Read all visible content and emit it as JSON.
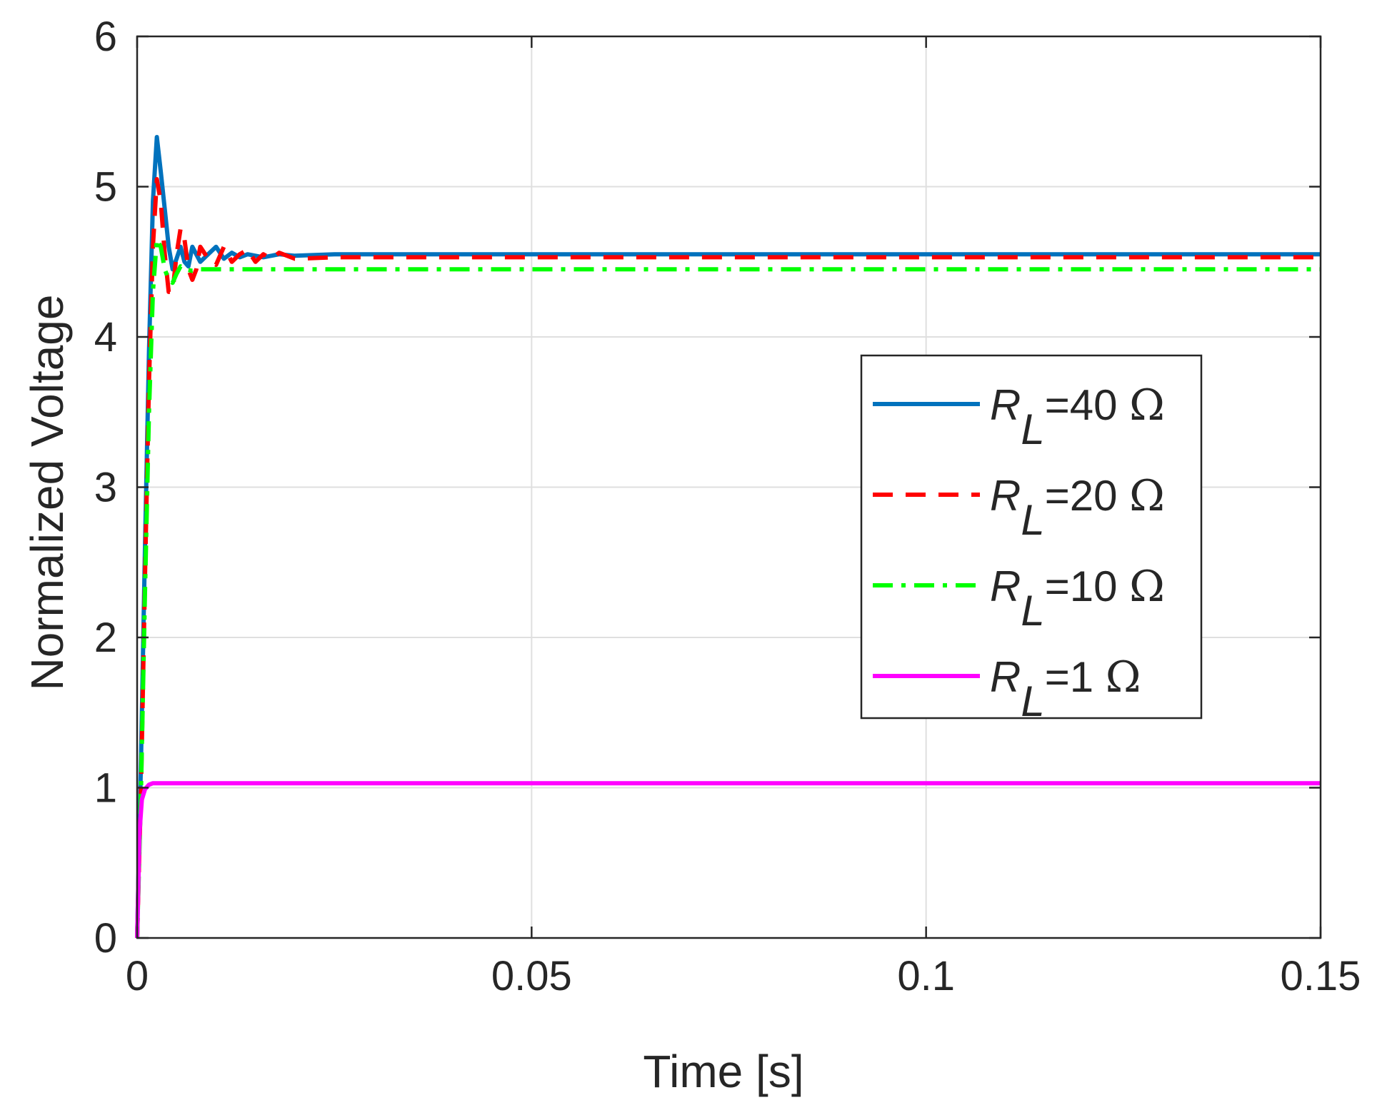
{
  "chart_data": {
    "type": "line",
    "xlabel": "Time [s]",
    "ylabel": "Normalized Voltage",
    "xlim": [
      0,
      0.15
    ],
    "ylim": [
      0,
      6
    ],
    "xticks": [
      0,
      0.05,
      0.1,
      0.15
    ],
    "xtick_labels": [
      "0",
      "0.05",
      "0.1",
      "0.15"
    ],
    "yticks": [
      0,
      1,
      2,
      3,
      4,
      5,
      6
    ],
    "ytick_labels": [
      "0",
      "1",
      "2",
      "3",
      "4",
      "5",
      "6"
    ],
    "grid": true,
    "legend_position": "center-right",
    "series": [
      {
        "name": "R_L=40 Ω",
        "legend": {
          "base": "R",
          "sub": "L",
          "rest": "=40 ",
          "symbol": "Ω"
        },
        "color": "#0072BD",
        "style": "solid",
        "x": [
          0,
          0.0005,
          0.001,
          0.0015,
          0.002,
          0.0025,
          0.003,
          0.0035,
          0.004,
          0.0045,
          0.005,
          0.0055,
          0.006,
          0.0065,
          0.007,
          0.008,
          0.009,
          0.01,
          0.011,
          0.012,
          0.013,
          0.014,
          0.016,
          0.018,
          0.02,
          0.025,
          0.05,
          0.1,
          0.15
        ],
        "y": [
          0,
          1.2,
          2.6,
          3.9,
          4.9,
          5.33,
          5.1,
          4.85,
          4.6,
          4.45,
          4.52,
          4.6,
          4.5,
          4.47,
          4.6,
          4.5,
          4.55,
          4.6,
          4.52,
          4.56,
          4.53,
          4.55,
          4.53,
          4.55,
          4.54,
          4.55,
          4.55,
          4.55,
          4.55
        ]
      },
      {
        "name": "R_L=20 Ω",
        "legend": {
          "base": "R",
          "sub": "L",
          "rest": "=20 ",
          "symbol": "Ω"
        },
        "color": "#FF0000",
        "style": "dashed",
        "x": [
          0,
          0.0005,
          0.001,
          0.0015,
          0.002,
          0.0025,
          0.003,
          0.0035,
          0.004,
          0.0045,
          0.005,
          0.0055,
          0.006,
          0.0065,
          0.007,
          0.0075,
          0.008,
          0.009,
          0.01,
          0.011,
          0.012,
          0.013,
          0.014,
          0.015,
          0.016,
          0.017,
          0.018,
          0.02,
          0.025,
          0.05,
          0.1,
          0.15
        ],
        "y": [
          0,
          1.0,
          2.4,
          3.7,
          4.6,
          5.05,
          4.9,
          4.55,
          4.3,
          4.3,
          4.55,
          4.72,
          4.65,
          4.45,
          4.38,
          4.45,
          4.6,
          4.52,
          4.48,
          4.6,
          4.5,
          4.55,
          4.58,
          4.5,
          4.55,
          4.52,
          4.56,
          4.52,
          4.53,
          4.53,
          4.53,
          4.53
        ]
      },
      {
        "name": "R_L=10 Ω",
        "legend": {
          "base": "R",
          "sub": "L",
          "rest": "=10 ",
          "symbol": "Ω"
        },
        "color": "#00FF00",
        "style": "dashdot",
        "x": [
          0,
          0.0005,
          0.001,
          0.0015,
          0.002,
          0.0025,
          0.003,
          0.0035,
          0.004,
          0.0045,
          0.005,
          0.0055,
          0.006,
          0.007,
          0.008,
          0.01,
          0.015,
          0.05,
          0.1,
          0.15
        ],
        "y": [
          0,
          1.0,
          2.3,
          3.5,
          4.3,
          4.65,
          4.6,
          4.45,
          4.38,
          4.36,
          4.42,
          4.47,
          4.45,
          4.44,
          4.45,
          4.45,
          4.45,
          4.45,
          4.45,
          4.45
        ]
      },
      {
        "name": "R_L=1 Ω",
        "legend": {
          "base": "R",
          "sub": "L",
          "rest": "=1 ",
          "symbol": "Ω"
        },
        "color": "#FF00FF",
        "style": "solid",
        "x": [
          0,
          0.0003,
          0.0006,
          0.001,
          0.0015,
          0.002,
          0.003,
          0.005,
          0.05,
          0.1,
          0.15
        ],
        "y": [
          0,
          0.7,
          0.92,
          0.99,
          1.02,
          1.03,
          1.03,
          1.03,
          1.03,
          1.03,
          1.03
        ]
      }
    ]
  }
}
